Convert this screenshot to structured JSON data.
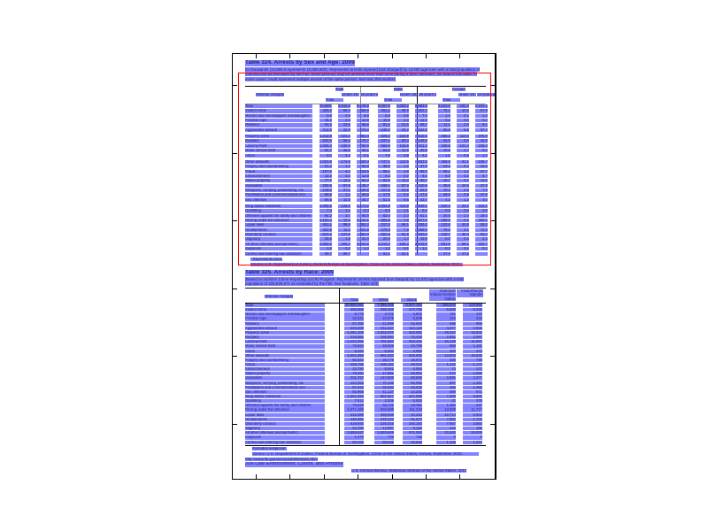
{
  "table324": {
    "title": "Table 324. Arrests by Sex and Age: 2009",
    "note": "[In thousands (10,690.6 represents 10,690,600). Represents arrests reported (not charged) by 13,000 agencies with a total population of 239,000,000 as estimated by the FBI. Some persons may be arrested more than once during a year; therefore, the data in this table, in some cases, could represent multiple arrests of the same person. See text, this section]",
    "stub_header": "Offense charged",
    "groups": [
      "Total",
      "Male",
      "Female"
    ],
    "subheaders": [
      "Total",
      "Under 18 years",
      "18 years and over"
    ],
    "rows": [
      [
        "Total",
        "10,690.6",
        "1,515.6",
        "9,175.0",
        "8,067.0",
        "1,083.2",
        "6,983.8",
        "2,623.6",
        "432.4",
        "2,191.2"
      ],
      [
        "Violent crime",
        "429.3",
        "59.4",
        "369.9",
        "351.2",
        "48.9",
        "302.3",
        "78.1",
        "10.5",
        "67.6"
      ],
      [
        "Murder and nonnegligent manslaughter",
        "9.8",
        "0.9",
        "8.9",
        "8.8",
        "0.9",
        "7.9",
        "1.0",
        "0.1",
        "1.0"
      ],
      [
        "Forcible rape",
        "15.2",
        "2.3",
        "12.9",
        "15.0",
        "2.3",
        "12.8",
        "0.2",
        "0.0",
        "0.2"
      ],
      [
        "Robbery",
        "92.3",
        "23.5",
        "68.8",
        "81.2",
        "21.5",
        "59.7",
        "11.1",
        "2.0",
        "9.1"
      ],
      [
        "Aggravated assault",
        "312.0",
        "32.8",
        "279.2",
        "246.2",
        "24.2",
        "222.0",
        "65.8",
        "8.6",
        "57.2"
      ],
      [
        "Property crime",
        "1,312.5",
        "321.1",
        "991.4",
        "826.3",
        "210.8",
        "615.5",
        "486.2",
        "110.3",
        "375.9"
      ],
      [
        "Burglary",
        "232.0",
        "56.3",
        "175.7",
        "197.1",
        "50.3",
        "146.8",
        "34.9",
        "6.0",
        "28.9"
      ],
      [
        "Larceny-theft",
        "1,006.4",
        "246.9",
        "759.5",
        "566.8",
        "145.6",
        "421.2",
        "439.6",
        "101.3",
        "338.3"
      ],
      [
        "Motor vehicle theft",
        "64.7",
        "15.6",
        "49.1",
        "53.8",
        "12.9",
        "40.9",
        "10.9",
        "2.7",
        "8.2"
      ],
      [
        "Arson",
        "9.4",
        "4.3",
        "5.1",
        "7.9",
        "3.8",
        "4.1",
        "1.5",
        "0.5",
        "1.0"
      ],
      [
        "Other assaults",
        "1,003.9",
        "174.6",
        "829.3",
        "747.1",
        "113.5",
        "633.6",
        "256.8",
        "61.1",
        "195.7"
      ],
      [
        "Forgery and counterfeiting",
        "61.4",
        "1.4",
        "60.0",
        "38.0",
        "1.0",
        "37.0",
        "23.4",
        "0.4",
        "23.0"
      ],
      [
        "Fraud",
        "157.2",
        "4.2",
        "153.0",
        "88.1",
        "2.8",
        "85.3",
        "69.1",
        "1.4",
        "67.7"
      ],
      [
        "Embezzlement",
        "13.2",
        "0.4",
        "12.8",
        "6.3",
        "0.2",
        "6.1",
        "6.9",
        "0.2",
        "6.7"
      ],
      [
        "Stolen property",
        "77.7",
        "13.4",
        "64.3",
        "62.0",
        "11.3",
        "50.7",
        "15.7",
        "2.1",
        "13.6"
      ],
      [
        "Vandalism",
        "206.6",
        "67.9",
        "138.7",
        "168.1",
        "57.3",
        "110.8",
        "38.5",
        "10.6",
        "27.9"
      ],
      [
        "Weapons; carrying, possessing, etc.",
        "128.0",
        "27.1",
        "100.9",
        "117.6",
        "24.6",
        "93.0",
        "10.4",
        "2.5",
        "7.9"
      ],
      [
        "Prostitution and commercialized vice",
        "56.6",
        "1.1",
        "55.5",
        "17.8",
        "0.2",
        "17.6",
        "38.8",
        "0.9",
        "37.9"
      ],
      [
        "Sex offenses",
        "56.5",
        "10.8",
        "45.7",
        "52.3",
        "9.6",
        "42.7",
        "4.2",
        "1.2",
        "3.0"
      ],
      [
        "Drug abuse violations",
        "1,305.2",
        "134.0",
        "1,171.2",
        "1,062.9",
        "113.8",
        "949.1",
        "242.3",
        "20.2",
        "222.1"
      ],
      [
        "Gambling",
        "7.4",
        "1.1",
        "6.3",
        "6.5",
        "1.1",
        "5.4",
        "0.9",
        "0.0",
        "0.9"
      ],
      [
        "Offenses against the family and children",
        "84.2",
        "3.7",
        "80.5",
        "63.4",
        "2.3",
        "61.1",
        "20.8",
        "1.4",
        "19.4"
      ],
      [
        "Driving under the influence",
        "1,151.4",
        "10.3",
        "1,141.1",
        "884.8",
        "7.8",
        "877.0",
        "266.6",
        "2.5",
        "264.1"
      ],
      [
        "Liquor laws",
        "451.1",
        "98.9",
        "352.2",
        "317.3",
        "58.1",
        "259.2",
        "133.8",
        "40.8",
        "93.0"
      ],
      [
        "Drunkenness",
        "452.8",
        "11.0",
        "441.8",
        "376.8",
        "7.9",
        "368.9",
        "76.0",
        "3.1",
        "72.9"
      ],
      [
        "Disorderly conduct",
        "522.2",
        "137.9",
        "384.3",
        "382.5",
        "91.6",
        "290.9",
        "139.7",
        "46.3",
        "93.4"
      ],
      [
        "Vagrancy",
        "25.8",
        "1.8",
        "24.0",
        "20.8",
        "1.3",
        "19.5",
        "5.0",
        "0.5",
        "4.5"
      ],
      [
        "All other offenses (except traffic)",
        "2,908.0",
        "265.4",
        "2,642.6",
        "2,216.2",
        "196.3",
        "2,019.9",
        "691.8",
        "69.1",
        "622.7"
      ],
      [
        "Suspicion",
        "1.5",
        "0.2",
        "1.3",
        "1.2",
        "0.1",
        "1.1",
        "0.3",
        "0.1",
        "0.2"
      ],
      [
        "Curfew and loitering law violations",
        "89.7",
        "89.7",
        "-",
        "62.1",
        "62.1",
        "-",
        "27.6",
        "27.6",
        "-"
      ]
    ],
    "footnote1": "- Represents zero.",
    "source": "Source: U.S. Department of Justice, Federal Bureau of Investigation, Crime in the United States, Annual, September 2010."
  },
  "table325": {
    "title": "Table 325. Arrests by Race: 2009",
    "note": "[Based on Uniform Crime Reporting (UCR) Program. Represents arrests reported (not charged) by 12,371 agencies with a total population of 239,839,971 as estimated by the FBI. See headnote, Table 324]",
    "stub_header": "Offense charged",
    "columns": [
      "Total",
      "White",
      "Black",
      "American Indian/Alaskan Native",
      "Asian/Pacific Islander"
    ],
    "rows": [
      [
        "Total",
        "10,690,561",
        "7,389,208",
        "3,027,153",
        "150,544",
        "123,656"
      ],
      [
        "Violent crime",
        "456,965",
        "268,346",
        "177,766",
        "5,608",
        "5,245"
      ],
      [
        "Murder and nonnegligent manslaughter",
        "9,775",
        "4,741",
        "4,801",
        "111",
        "122"
      ],
      [
        "Forcible rape",
        "15,541",
        "10,079",
        "5,006",
        "224",
        "232"
      ],
      [
        "Robbery",
        "97,380",
        "41,999",
        "53,826",
        "596",
        "959"
      ],
      [
        "Aggravated assault",
        "334,269",
        "211,527",
        "114,133",
        "4,677",
        "3,932"
      ],
      [
        "Property crime",
        "1,461,109",
        "1,002,070",
        "424,061",
        "19,347",
        "15,631"
      ],
      [
        "Burglary",
        "234,551",
        "155,994",
        "74,419",
        "2,051",
        "2,087"
      ],
      [
        "Larceny-theft",
        "1,124,391",
        "781,844",
        "313,431",
        "16,129",
        "12,987"
      ],
      [
        "Motor vehicle theft",
        "73,834",
        "48,029",
        "23,766",
        "858",
        "1,181"
      ],
      [
        "Arson",
        "8,333",
        "6,203",
        "2,025",
        "309",
        "376"
      ],
      [
        "Other assaults",
        "1,001,856",
        "651,333",
        "328,001",
        "13,603",
        "10,830"
      ],
      [
        "Forgery and counterfeiting",
        "60,844",
        "39,779",
        "19,971",
        "305",
        "789"
      ],
      [
        "Fraud",
        "159,788",
        "108,163",
        "49,210",
        "1,242",
        "1,173"
      ],
      [
        "Embezzlement",
        "13,750",
        "8,941",
        "4,564",
        "73",
        "172"
      ],
      [
        "Stolen property",
        "79,464",
        "47,882",
        "29,954",
        "570",
        "1,058"
      ],
      [
        "Vandalism",
        "201,767",
        "147,809",
        "48,690",
        "2,891",
        "2,377"
      ],
      [
        "Weapons; carrying, possessing, etc.",
        "124,483",
        "70,145",
        "52,060",
        "897",
        "1,381"
      ],
      [
        "Prostitution and commercialized vice",
        "57,342",
        "32,020",
        "23,602",
        "265",
        "1,455"
      ],
      [
        "Sex offenses",
        "55,968",
        "41,127",
        "13,281",
        "589",
        "971"
      ],
      [
        "Drug abuse violations",
        "1,301,393",
        "857,617",
        "427,086",
        "7,809",
        "8,881"
      ],
      [
        "Gambling",
        "7,612",
        "2,209",
        "5,003",
        "22",
        "378"
      ],
      [
        "Offenses against the family and children",
        "79,429",
        "52,711",
        "24,911",
        "1,360",
        "447"
      ],
      [
        "Driving under the influence",
        "1,071,480",
        "934,935",
        "111,219",
        "13,609",
        "11,717"
      ],
      [
        "Liquor laws",
        "418,589",
        "359,058",
        "43,315",
        "10,714",
        "5,502"
      ],
      [
        "Drunkenness",
        "446,361",
        "375,123",
        "61,574",
        "7,962",
        "1,702"
      ],
      [
        "Disorderly conduct",
        "519,840",
        "325,016",
        "183,183",
        "7,957",
        "3,684"
      ],
      [
        "Vagrancy",
        "24,760",
        "14,997",
        "9,164",
        "443",
        "156"
      ],
      [
        "All other offenses (except traffic)",
        "2,955,637",
        "1,925,649",
        "971,063",
        "33,930",
        "25,005"
      ],
      [
        "Suspicion",
        "1,476",
        "726",
        "736",
        "8",
        "6"
      ],
      [
        "Curfew and loitering law violations",
        "93,435",
        "58,245",
        "33,835",
        "1,108",
        "1,247"
      ]
    ],
    "footnote1": "Excludes suspicion.",
    "source": "Source: U.S. Department of Justice, Federal Bureau of Investigation, Crime in the United States, Annual, September 2010.",
    "url": "http://www.fbi.gov/ucr/cius2009/index.html"
  },
  "footer": {
    "left": "206 Law Enforcement, Courts, and Prisons",
    "right": "U.S. Census Bureau, Statistical Abstract of the United States: 2012"
  },
  "colors": {
    "highlight": "#5a5aff",
    "selection": "#ff0000"
  }
}
